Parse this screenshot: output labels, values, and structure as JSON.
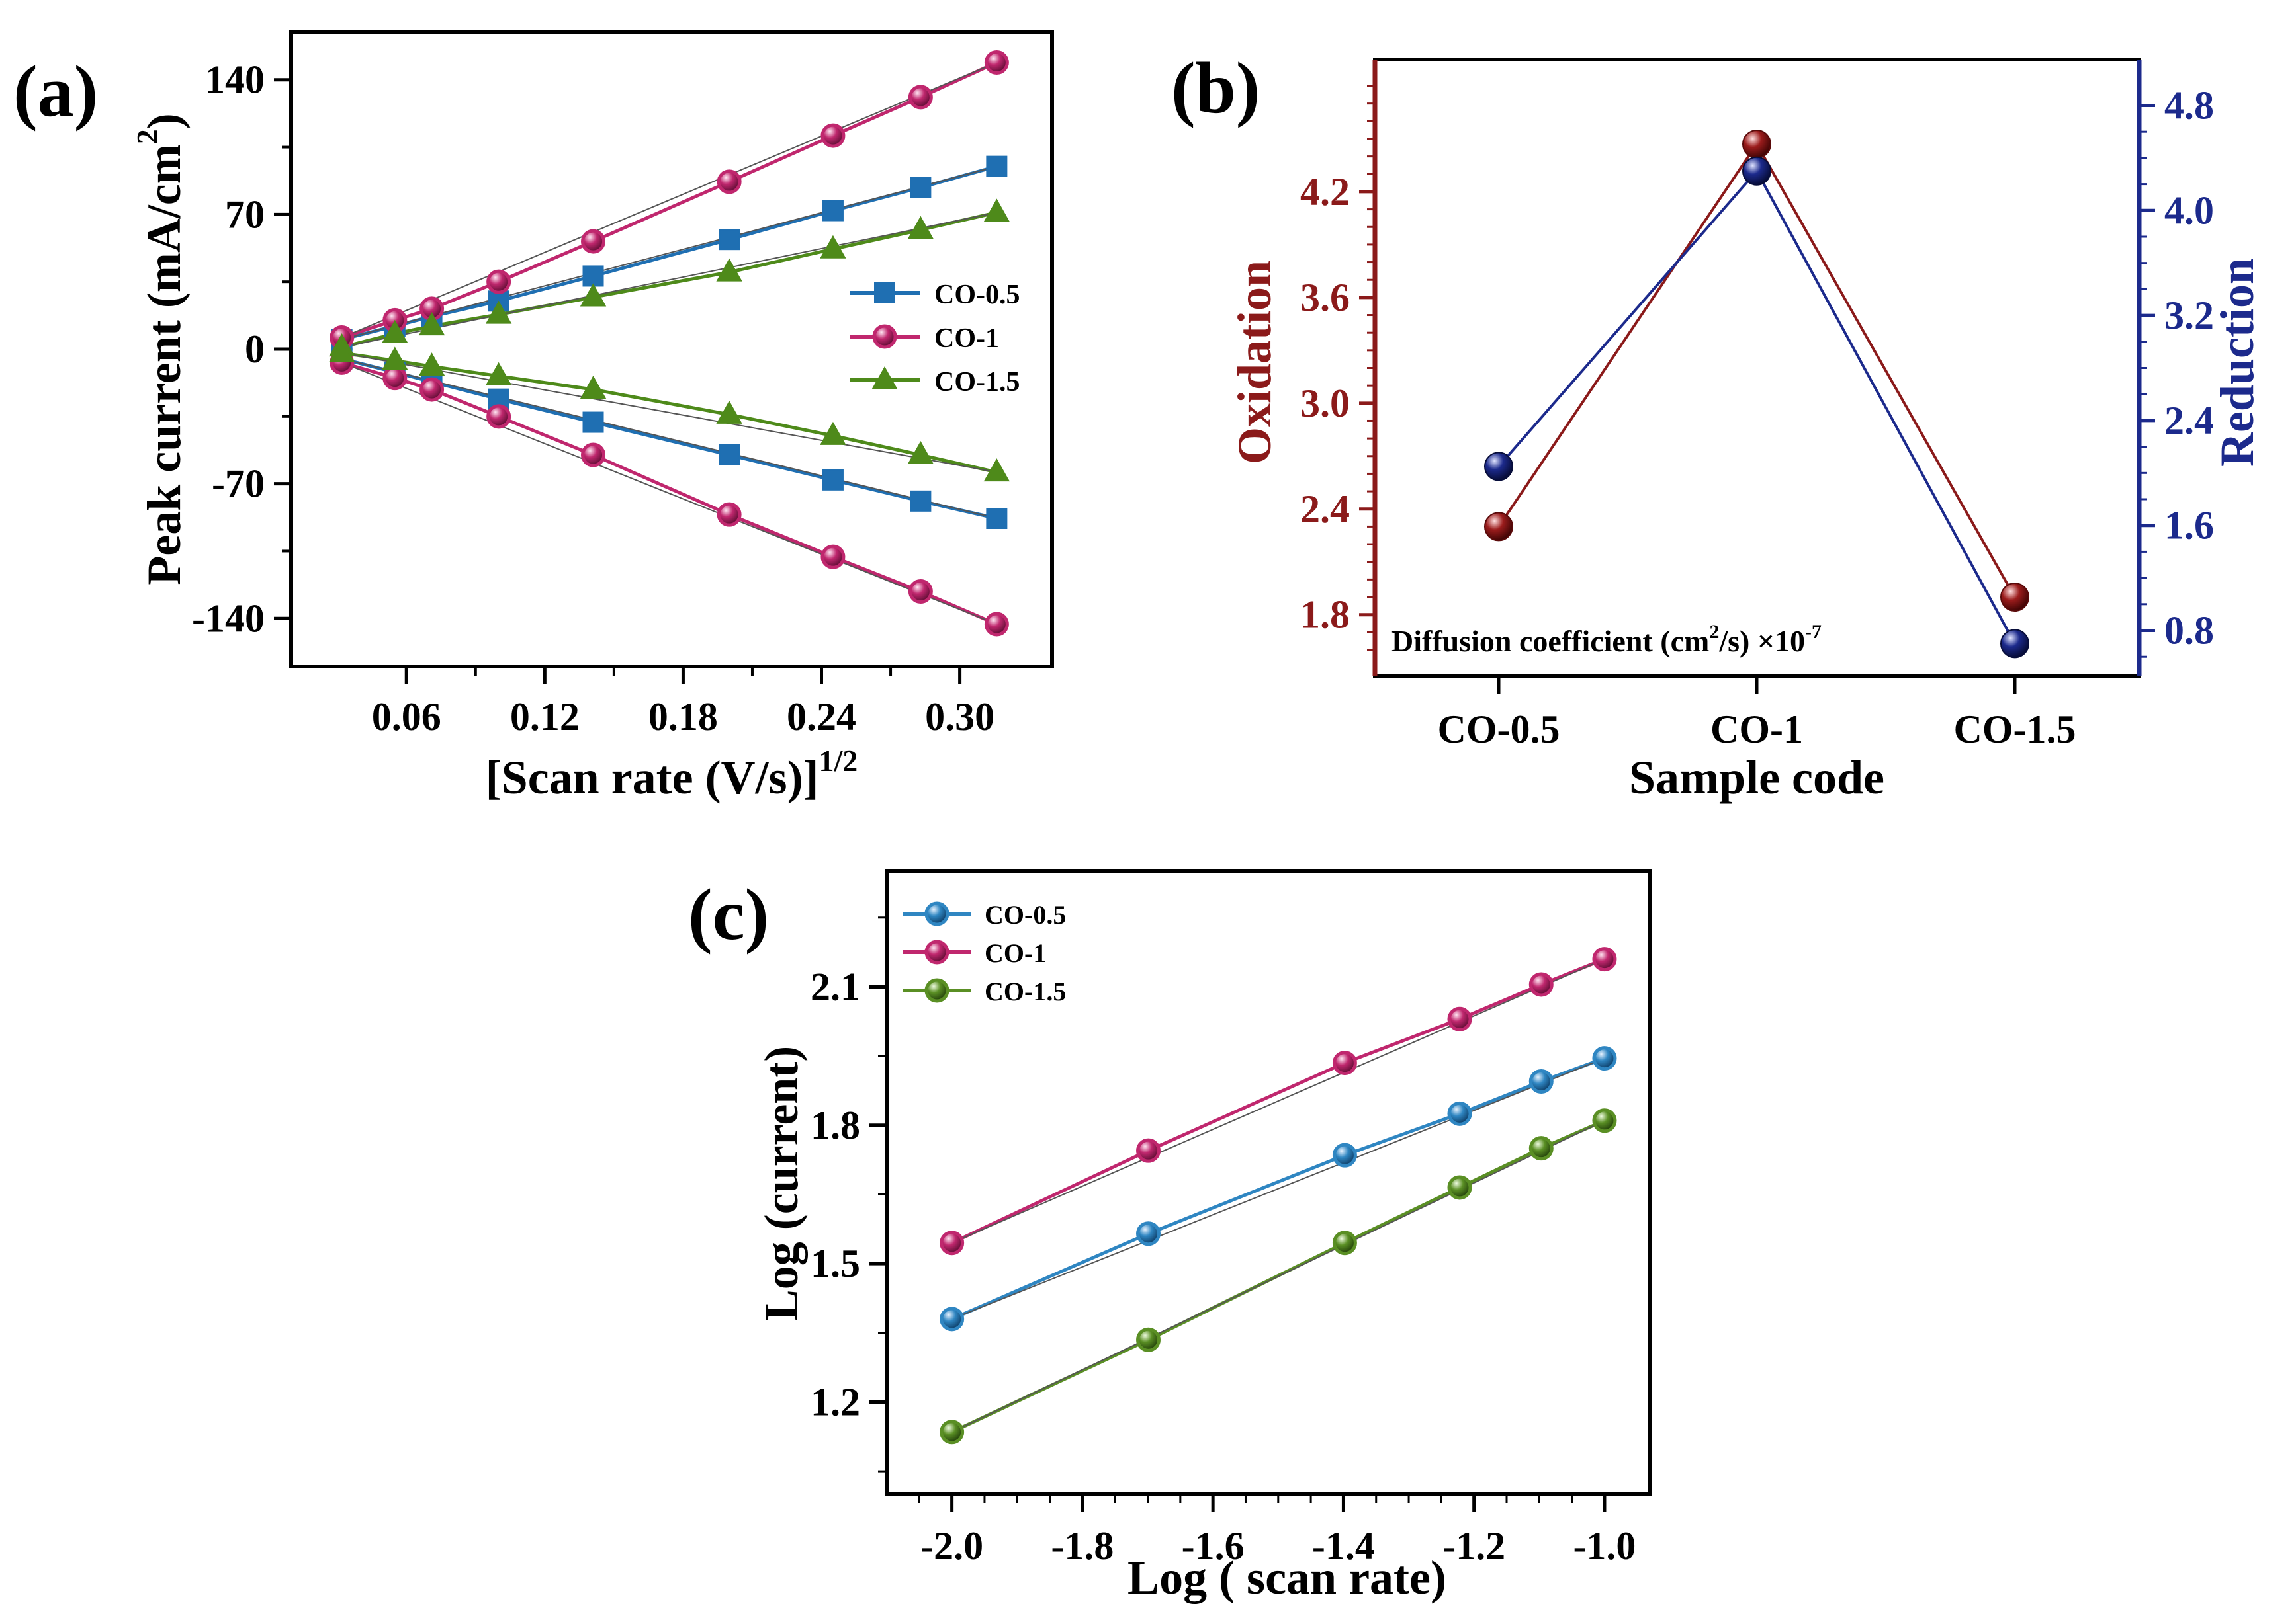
{
  "figure": {
    "panel_labels": [
      "(a)",
      "(b)",
      "(c)"
    ]
  },
  "chart_data": [
    {
      "id": "a",
      "type": "line",
      "xlabel": "[Scan rate (V/s)]",
      "xlabel_sup": "1/2",
      "ylabel": "Peak current (mA/cm",
      "ylabel_sup": "2",
      "ylabel_end": ")",
      "xlim": [
        0.01,
        0.34
      ],
      "ylim": [
        -165,
        165
      ],
      "xticks": [
        0.06,
        0.12,
        0.18,
        0.24,
        0.3
      ],
      "xtick_labels": [
        "0.06",
        "0.12",
        "0.18",
        "0.24",
        "0.30"
      ],
      "yticks": [
        -140,
        -70,
        0,
        70,
        140
      ],
      "ytick_labels": [
        "-140",
        "-70",
        "0",
        "70",
        "140"
      ],
      "legend": "center-right",
      "x": [
        0.032,
        0.055,
        0.071,
        0.1,
        0.141,
        0.2,
        0.245,
        0.283,
        0.316
      ],
      "series": [
        {
          "name": "CO-0.5",
          "marker": "square",
          "color": "#1f6fb2",
          "anodic": [
            5,
            12,
            17,
            25,
            38,
            57,
            72,
            84,
            95
          ],
          "cathodic": [
            -5,
            -12,
            -17,
            -26,
            -38,
            -55,
            -68,
            -79,
            -88
          ]
        },
        {
          "name": "CO-1",
          "marker": "circle",
          "color": "#c0276e",
          "anodic": [
            6,
            15,
            21,
            35,
            56,
            87,
            111,
            131,
            149
          ],
          "cathodic": [
            -7,
            -15,
            -21,
            -35,
            -55,
            -86,
            -108,
            -126,
            -143
          ]
        },
        {
          "name": "CO-1.5",
          "marker": "triangle",
          "color": "#4e8a1a",
          "anodic": [
            1,
            8,
            12,
            18,
            27,
            40,
            52,
            62,
            71
          ],
          "cathodic": [
            -2,
            -6,
            -9,
            -14,
            -21,
            -34,
            -45,
            -55,
            -64
          ]
        }
      ]
    },
    {
      "id": "b",
      "type": "line",
      "xlabel": "Sample code",
      "ylabel_left": "Oxidation",
      "ylabel_right": "Reduction",
      "categories": [
        "CO-0.5",
        "CO-1",
        "CO-1.5"
      ],
      "ylim_left": [
        1.45,
        4.95
      ],
      "ylim_right": [
        0.45,
        5.15
      ],
      "yticks_left": [
        1.8,
        2.4,
        3.0,
        3.6,
        4.2
      ],
      "ytick_labels_left": [
        "1.8",
        "2.4",
        "3.0",
        "3.6",
        "4.2"
      ],
      "yticks_right": [
        0.8,
        1.6,
        2.4,
        3.2,
        4.0,
        4.8
      ],
      "ytick_labels_right": [
        "0.8",
        "1.6",
        "2.4",
        "3.2",
        "4.0",
        "4.8"
      ],
      "left_color": "#8b1a1a",
      "right_color": "#1c2a8c",
      "oxidation": [
        2.3,
        4.47,
        1.9
      ],
      "reduction": [
        2.05,
        4.3,
        0.7
      ],
      "annotation": "Diffusion coefficient (cm",
      "annotation_sup": "2",
      "annotation_mid": "/s) ×10",
      "annotation_sup2": "-7"
    },
    {
      "id": "c",
      "type": "line",
      "xlabel": "Log ( scan rate)",
      "ylabel": "Log (current)",
      "xlim": [
        -2.1,
        -0.93
      ],
      "ylim": [
        1.0,
        2.35
      ],
      "xticks": [
        -2.0,
        -1.8,
        -1.6,
        -1.4,
        -1.2,
        -1.0
      ],
      "xtick_labels": [
        "-2.0",
        "-1.8",
        "-1.6",
        "-1.4",
        "-1.2",
        "-1.0"
      ],
      "yticks": [
        1.2,
        1.5,
        1.8,
        2.1
      ],
      "ytick_labels": [
        "1.2",
        "1.5",
        "1.8",
        "2.1"
      ],
      "legend": "top-left",
      "x": [
        -2.0,
        -1.699,
        -1.398,
        -1.222,
        -1.097,
        -1.0
      ],
      "series": [
        {
          "name": "CO-0.5",
          "color": "#2f86c2",
          "values": [
            1.38,
            1.565,
            1.735,
            1.825,
            1.895,
            1.945
          ]
        },
        {
          "name": "CO-1",
          "color": "#c0276e",
          "values": [
            1.545,
            1.745,
            1.935,
            2.03,
            2.105,
            2.16
          ]
        },
        {
          "name": "CO-1.5",
          "color": "#5a8f24",
          "values": [
            1.135,
            1.335,
            1.545,
            1.665,
            1.75,
            1.81
          ]
        }
      ]
    }
  ]
}
